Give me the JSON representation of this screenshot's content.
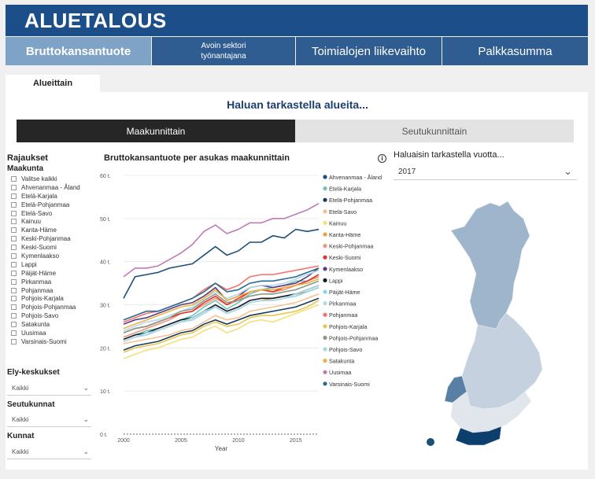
{
  "app": {
    "title": "ALUETALOUS"
  },
  "tabs": [
    "Bruttokansantuote",
    "Avoin sektori työnantajana",
    "Toimialojen liikevaihto",
    "Palkkasumma"
  ],
  "subtab": "Alueittain",
  "question": "Haluan tarkastella alueita...",
  "toggle": {
    "left": "Maakunnittain",
    "right": "Seutukunnittain"
  },
  "filters": {
    "heading": "Rajaukset",
    "maakunta_label": "Maakunta",
    "maakunta_options": [
      "Valitse kaikki",
      "Ahvenanmaa - Åland",
      "Etelä-Karjala",
      "Etelä-Pohjanmaa",
      "Etelä-Savo",
      "Kainuu",
      "Kanta-Häme",
      "Keski-Pohjanmaa",
      "Keski-Suomi",
      "Kymenlaakso",
      "Lappi",
      "Päijät-Häme",
      "Pirkanmaa",
      "Pohjanmaa",
      "Pohjois-Karjala",
      "Pohjois-Pohjanmaa",
      "Pohjois-Savo",
      "Satakunta",
      "Uusimaa",
      "Varsinais-Suomi"
    ],
    "ely_label": "Ely-keskukset",
    "ely_value": "Kaikki",
    "seutukunnat_label": "Seutukunnat",
    "seutukunnat_value": "Kaikki",
    "kunnat_label": "Kunnat",
    "kunnat_value": "Kaikki"
  },
  "chart_title": "Bruttokansantuote per asukas maakunnittain",
  "map_title": "Haluaisin tarkastella vuotta...",
  "year_value": "2017",
  "icons": {
    "info": "info-icon",
    "chevron": "chevron-down-icon"
  },
  "chart_data": {
    "type": "line",
    "xlabel": "Year",
    "ylabel": "",
    "xlim": [
      2000,
      2017
    ],
    "ylim": [
      0,
      60
    ],
    "x_ticks": [
      2000,
      2005,
      2010,
      2015
    ],
    "y_ticks": [
      0,
      10,
      20,
      30,
      40,
      50,
      60
    ],
    "y_tick_labels": [
      "0 t.",
      "10 t.",
      "20 t.",
      "30 t.",
      "40 t.",
      "50 t.",
      "60 t."
    ],
    "x": [
      2000,
      2001,
      2002,
      2003,
      2004,
      2005,
      2006,
      2007,
      2008,
      2009,
      2010,
      2011,
      2012,
      2013,
      2014,
      2015,
      2016,
      2017
    ],
    "series": [
      {
        "name": "Ahvenanmaa - Åland",
        "color": "#1a4f77",
        "values": [
          31.5,
          36.5,
          37.0,
          37.5,
          38.5,
          39.0,
          39.5,
          41.5,
          43.5,
          41.5,
          42.5,
          44.5,
          44.5,
          46.0,
          45.5,
          47.5,
          47.0,
          47.5
        ]
      },
      {
        "name": "Etelä-Karjala",
        "color": "#6fc3b3",
        "values": [
          22.0,
          23.0,
          24.0,
          24.5,
          25.5,
          26.5,
          27.5,
          29.5,
          31.0,
          29.0,
          30.5,
          32.5,
          33.5,
          34.0,
          34.5,
          35.5,
          35.5,
          36.5
        ]
      },
      {
        "name": "Etelä-Pohjanmaa",
        "color": "#1a3a5a",
        "values": [
          19.5,
          20.5,
          21.0,
          21.5,
          22.5,
          23.5,
          24.0,
          25.5,
          26.5,
          25.5,
          26.5,
          27.5,
          28.0,
          28.5,
          29.0,
          29.5,
          30.5,
          31.5
        ]
      },
      {
        "name": "Etelä-Savo",
        "color": "#f5c18d",
        "values": [
          21.0,
          21.5,
          22.0,
          22.5,
          23.0,
          24.0,
          24.5,
          26.0,
          27.5,
          26.5,
          27.0,
          28.5,
          29.0,
          29.5,
          30.0,
          30.5,
          31.5,
          32.5
        ]
      },
      {
        "name": "Kainuu",
        "color": "#f5e07a",
        "values": [
          17.5,
          18.5,
          19.5,
          20.0,
          21.0,
          22.0,
          22.5,
          24.0,
          25.0,
          23.5,
          24.5,
          26.0,
          26.5,
          26.0,
          27.0,
          28.0,
          29.0,
          30.0
        ]
      },
      {
        "name": "Kanta-Häme",
        "color": "#f0a03a",
        "values": [
          21.5,
          22.5,
          23.0,
          24.0,
          25.0,
          26.0,
          26.5,
          28.0,
          29.5,
          28.0,
          29.0,
          30.5,
          31.0,
          31.5,
          32.0,
          32.5,
          33.0,
          34.0
        ]
      },
      {
        "name": "Keski-Pohjanmaa",
        "color": "#f0957a",
        "values": [
          22.5,
          23.5,
          24.5,
          25.5,
          26.5,
          28.0,
          28.5,
          30.0,
          31.5,
          30.0,
          31.0,
          33.0,
          33.5,
          33.0,
          33.5,
          34.5,
          35.5,
          36.5
        ]
      },
      {
        "name": "Keski-Suomi",
        "color": "#e4322b",
        "values": [
          23.5,
          24.5,
          25.0,
          26.0,
          27.0,
          28.0,
          28.5,
          30.5,
          32.0,
          30.0,
          31.5,
          33.0,
          33.5,
          33.0,
          34.0,
          34.5,
          35.5,
          37.0
        ]
      },
      {
        "name": "Kymenlaakso",
        "color": "#5a3d80",
        "values": [
          25.5,
          26.5,
          27.0,
          28.0,
          29.0,
          30.0,
          30.5,
          32.0,
          34.0,
          31.0,
          32.0,
          34.0,
          34.5,
          34.0,
          34.5,
          35.0,
          36.5,
          38.5
        ]
      },
      {
        "name": "Lappi",
        "color": "#1a1a2a",
        "values": [
          22.0,
          23.0,
          23.5,
          24.5,
          25.5,
          26.5,
          27.0,
          28.5,
          30.0,
          28.5,
          29.5,
          31.0,
          31.5,
          31.5,
          32.0,
          32.5,
          33.5,
          34.5
        ]
      },
      {
        "name": "Päijät-Häme",
        "color": "#8fd6e8",
        "values": [
          21.5,
          22.5,
          23.5,
          24.0,
          25.0,
          26.0,
          27.0,
          28.5,
          29.5,
          28.0,
          29.0,
          30.5,
          31.0,
          31.0,
          31.5,
          32.0,
          33.0,
          34.0
        ]
      },
      {
        "name": "Pirkanmaa",
        "color": "#b7d8e8",
        "values": [
          24.0,
          25.0,
          26.0,
          26.5,
          27.5,
          28.5,
          29.5,
          31.5,
          33.0,
          31.5,
          32.5,
          34.0,
          34.5,
          34.5,
          35.0,
          36.0,
          37.0,
          38.0
        ]
      },
      {
        "name": "Pohjanmaa",
        "color": "#f5706a",
        "values": [
          26.0,
          27.0,
          28.0,
          28.5,
          29.5,
          30.5,
          31.5,
          33.5,
          35.0,
          33.5,
          34.5,
          36.5,
          37.0,
          37.0,
          37.5,
          38.0,
          38.5,
          39.0
        ]
      },
      {
        "name": "Pohjois-Karjala",
        "color": "#e6c84d",
        "values": [
          19.0,
          20.0,
          20.5,
          21.0,
          22.0,
          23.0,
          23.5,
          25.0,
          26.0,
          25.0,
          25.5,
          27.0,
          27.5,
          27.5,
          28.0,
          28.5,
          29.5,
          31.0
        ]
      },
      {
        "name": "Pohjois-Pohjanmaa",
        "color": "#8a9a8a",
        "values": [
          23.5,
          24.5,
          25.0,
          26.0,
          27.0,
          28.5,
          29.0,
          31.0,
          32.5,
          30.5,
          31.0,
          32.0,
          32.5,
          32.5,
          33.0,
          33.5,
          34.5,
          35.5
        ]
      },
      {
        "name": "Pohjois-Savo",
        "color": "#a9d8e8",
        "values": [
          21.5,
          22.5,
          23.0,
          24.0,
          25.0,
          26.0,
          26.5,
          28.0,
          29.5,
          28.0,
          29.0,
          30.5,
          31.0,
          31.0,
          31.5,
          32.5,
          33.5,
          34.5
        ]
      },
      {
        "name": "Satakunta",
        "color": "#e8b44a",
        "values": [
          24.5,
          25.5,
          26.5,
          27.5,
          28.5,
          29.5,
          30.0,
          31.5,
          33.5,
          31.0,
          32.0,
          33.0,
          33.5,
          33.5,
          34.0,
          34.5,
          35.0,
          36.0
        ]
      },
      {
        "name": "Uusimaa",
        "color": "#c07ab5",
        "values": [
          36.5,
          38.5,
          38.5,
          39.0,
          40.5,
          42.0,
          44.0,
          47.0,
          48.5,
          46.5,
          47.5,
          49.0,
          49.0,
          50.0,
          50.0,
          51.0,
          52.0,
          53.5
        ]
      },
      {
        "name": "Varsinais-Suomi",
        "color": "#2a6a90",
        "values": [
          26.5,
          27.5,
          28.5,
          28.5,
          29.5,
          30.5,
          31.5,
          33.0,
          35.0,
          33.0,
          33.5,
          35.0,
          35.5,
          35.5,
          36.0,
          36.5,
          37.5,
          38.5
        ]
      }
    ]
  }
}
